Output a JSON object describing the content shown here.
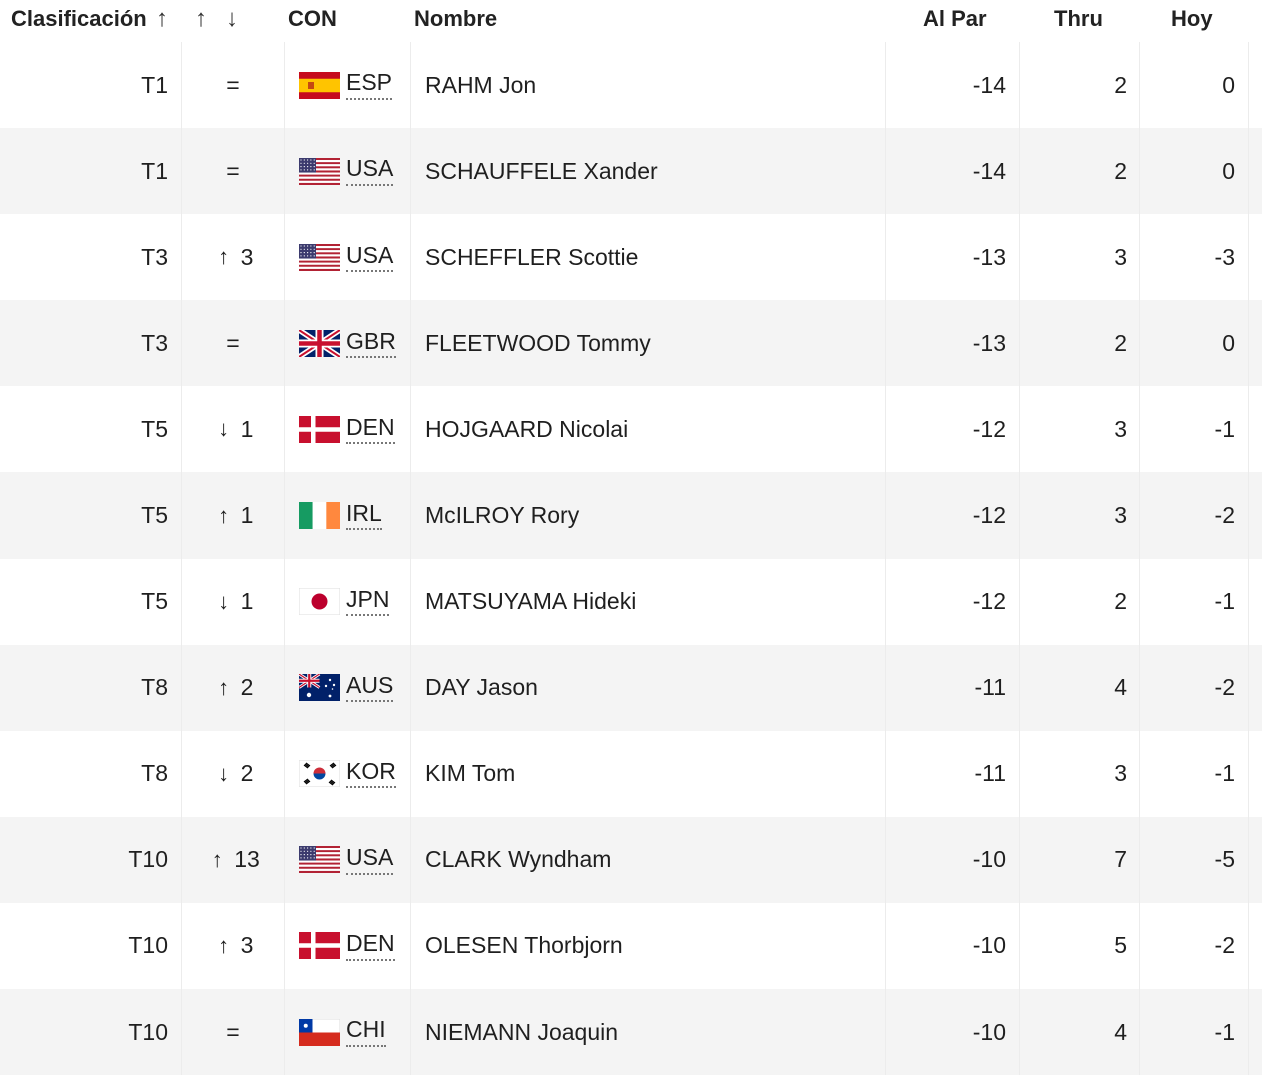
{
  "header": {
    "rank_label": "Clasificación",
    "sort_arrow_up": "↑",
    "move_up_arrow": "↑",
    "move_down_arrow": "↓",
    "country_label": "CON",
    "name_label": "Nombre",
    "par_label": "Al Par",
    "thru_label": "Thru",
    "today_label": "Hoy"
  },
  "rows": [
    {
      "rank": "T1",
      "move": "=",
      "move_dir": "same",
      "flag": "ESP",
      "country": "ESP",
      "name": "RAHM Jon",
      "par": "-14",
      "thru": "2",
      "today": "0"
    },
    {
      "rank": "T1",
      "move": "=",
      "move_dir": "same",
      "flag": "USA",
      "country": "USA",
      "name": "SCHAUFFELE Xander",
      "par": "-14",
      "thru": "2",
      "today": "0"
    },
    {
      "rank": "T3",
      "move": "3",
      "move_dir": "up",
      "flag": "USA",
      "country": "USA",
      "name": "SCHEFFLER Scottie",
      "par": "-13",
      "thru": "3",
      "today": "-3"
    },
    {
      "rank": "T3",
      "move": "=",
      "move_dir": "same",
      "flag": "GBR",
      "country": "GBR",
      "name": "FLEETWOOD Tommy",
      "par": "-13",
      "thru": "2",
      "today": "0"
    },
    {
      "rank": "T5",
      "move": "1",
      "move_dir": "down",
      "flag": "DEN",
      "country": "DEN",
      "name": "HOJGAARD Nicolai",
      "par": "-12",
      "thru": "3",
      "today": "-1"
    },
    {
      "rank": "T5",
      "move": "1",
      "move_dir": "up",
      "flag": "IRL",
      "country": "IRL",
      "name": "McILROY Rory",
      "par": "-12",
      "thru": "3",
      "today": "-2"
    },
    {
      "rank": "T5",
      "move": "1",
      "move_dir": "down",
      "flag": "JPN",
      "country": "JPN",
      "name": "MATSUYAMA Hideki",
      "par": "-12",
      "thru": "2",
      "today": "-1"
    },
    {
      "rank": "T8",
      "move": "2",
      "move_dir": "up",
      "flag": "AUS",
      "country": "AUS",
      "name": "DAY Jason",
      "par": "-11",
      "thru": "4",
      "today": "-2"
    },
    {
      "rank": "T8",
      "move": "2",
      "move_dir": "down",
      "flag": "KOR",
      "country": "KOR",
      "name": "KIM Tom",
      "par": "-11",
      "thru": "3",
      "today": "-1"
    },
    {
      "rank": "T10",
      "move": "13",
      "move_dir": "up",
      "flag": "USA",
      "country": "USA",
      "name": "CLARK Wyndham",
      "par": "-10",
      "thru": "7",
      "today": "-5"
    },
    {
      "rank": "T10",
      "move": "3",
      "move_dir": "up",
      "flag": "DEN",
      "country": "DEN",
      "name": "OLESEN Thorbjorn",
      "par": "-10",
      "thru": "5",
      "today": "-2"
    },
    {
      "rank": "T10",
      "move": "=",
      "move_dir": "same",
      "flag": "CHI",
      "country": "CHI",
      "name": "NIEMANN Joaquin",
      "par": "-10",
      "thru": "4",
      "today": "-1"
    }
  ],
  "icons": {
    "up": "arrow-up-icon",
    "down": "arrow-down-icon",
    "same": "equals-icon"
  },
  "colors": {
    "row_alt": "#f4f4f4",
    "text": "#1f1f1f",
    "divider": "#ececec"
  }
}
